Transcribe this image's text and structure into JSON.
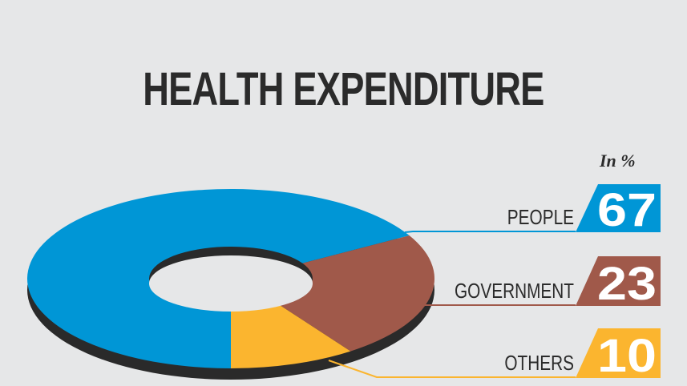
{
  "chart_data": {
    "type": "pie",
    "title": "HEALTH EXPENDITURE",
    "unit_label": "In %",
    "categories": [
      "PEOPLE",
      "GOVERNMENT",
      "OTHERS"
    ],
    "values": [
      67,
      23,
      10
    ],
    "colors": [
      "#0096d6",
      "#a0594a",
      "#fbb52f"
    ],
    "value_labels": [
      "67",
      "23",
      "10"
    ]
  }
}
